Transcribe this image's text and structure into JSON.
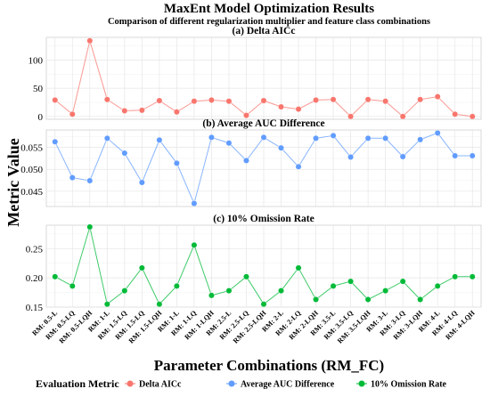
{
  "title": "MaxEnt Model Optimization Results",
  "subtitle": "Comparison of different regularization multiplier and feature class combinations",
  "ylabel": "Metric Value",
  "xlabel": "Parameter Combinations (RM_FC)",
  "legend": {
    "title": "Evaluation Metric",
    "position": "bottom"
  },
  "chart_data": {
    "type": "line",
    "categories": [
      "RM: 0.5-L",
      "RM: 0.5-LQ",
      "RM: 0.5-LQH",
      "RM: 1-L",
      "RM: 1.5-LQ",
      "RM: 1.5-LQ",
      "RM: 1.5-LQH",
      "RM: 1-L",
      "RM: 1-LQ",
      "RM: 1-LQH",
      "RM: 2.5-L",
      "RM: 2.5-LQ",
      "RM: 2.5-LQH",
      "RM: 2-L",
      "RM: 2-LQ",
      "RM: 2-LQH",
      "RM: 3.5-L",
      "RM: 3.5-LQ",
      "RM: 3.5-LQH",
      "RM: 3-L",
      "RM: 3-LQ",
      "RM: 3-LQH",
      "RM: 4-L",
      "RM: 4-LQ",
      "RM: 4-LQH"
    ],
    "facets": [
      {
        "panel_title": "(a) Delta AICc",
        "series_name": "Delta AICc",
        "color": "#F8766D",
        "ylim": [
          -5,
          140
        ],
        "yticks": [
          0,
          50,
          100
        ],
        "ytick_labels": [
          "0",
          "50",
          "100"
        ],
        "values": [
          29,
          4,
          134,
          30,
          10,
          11,
          28,
          8,
          27,
          29,
          27,
          2,
          28,
          17,
          13,
          29,
          30,
          0,
          30,
          27,
          0,
          30,
          35,
          4,
          0
        ]
      },
      {
        "panel_title": "(b) Average AUC Difference",
        "series_name": "Average AUC Difference",
        "color": "#619CFF",
        "ylim": [
          0.0415,
          0.059
        ],
        "yticks": [
          0.045,
          0.05,
          0.055
        ],
        "ytick_labels": [
          "0.045",
          "0.050",
          "0.055"
        ],
        "values": [
          0.0563,
          0.0481,
          0.0474,
          0.0571,
          0.0537,
          0.047,
          0.0567,
          0.0514,
          0.0422,
          0.0573,
          0.056,
          0.052,
          0.0573,
          0.0549,
          0.0506,
          0.0571,
          0.0577,
          0.0528,
          0.0571,
          0.0571,
          0.0529,
          0.0568,
          0.0583,
          0.0531,
          0.0531
        ]
      },
      {
        "panel_title": "(c) 10% Omission Rate",
        "series_name": "10% Omission Rate",
        "color": "#00BA38",
        "ylim": [
          0.15,
          0.29
        ],
        "yticks": [
          0.15,
          0.2,
          0.25
        ],
        "ytick_labels": [
          "0.15",
          "0.20",
          "0.25"
        ],
        "values": [
          0.202,
          0.186,
          0.287,
          0.155,
          0.178,
          0.217,
          0.155,
          0.186,
          0.256,
          0.17,
          0.178,
          0.202,
          0.155,
          0.178,
          0.217,
          0.163,
          0.186,
          0.194,
          0.163,
          0.178,
          0.194,
          0.163,
          0.186,
          0.202,
          0.202
        ]
      }
    ]
  }
}
